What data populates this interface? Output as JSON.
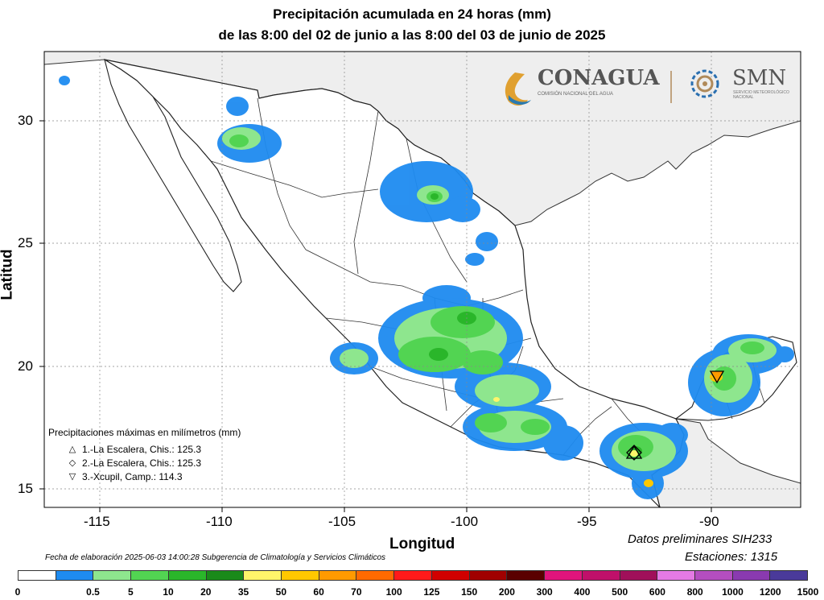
{
  "title": {
    "line1": "Precipitación acumulada en 24 horas (mm)",
    "line2": "de las 8:00 del 02 de junio a las 8:00 del 03 de junio de 2025"
  },
  "axes": {
    "xlabel": "Longitud",
    "ylabel": "Latitud",
    "xticks": [
      "-115",
      "-110",
      "-105",
      "-100",
      "-95",
      "-90"
    ],
    "yticks": [
      "30",
      "25",
      "20",
      "15"
    ],
    "x_range": [
      -117.2,
      -86.2
    ],
    "y_range": [
      14.3,
      32.9
    ]
  },
  "logos": {
    "conagua": "CONAGUA",
    "conagua_sub": "COMISIÓN NACIONAL DEL AGUA",
    "smn": "SMN",
    "smn_sub": "SERVICIO METEOROLÓGICO NACIONAL"
  },
  "max_precip": {
    "heading": "Precipitaciones máximas en milímetros (mm)",
    "items": [
      {
        "symbol": "△",
        "label": "1.-La Escalera, Chis.: 125.3"
      },
      {
        "symbol": "◇",
        "label": "2.-La Escalera, Chis.: 125.3"
      },
      {
        "symbol": "▽",
        "label": "3.-Xcupil, Camp.: 114.3"
      }
    ]
  },
  "meta": {
    "preliminary": "Datos preliminares SIH233",
    "stations": "Estaciones:  1315",
    "footnote": "Fecha de elaboración 2025-06-03 14:00:28 Subgerencia de Climatología y Servicios Climáticos"
  },
  "colorbar": {
    "labels": [
      "0",
      "0.5",
      "5",
      "10",
      "20",
      "35",
      "50",
      "60",
      "70",
      "100",
      "125",
      "150",
      "200",
      "300",
      "400",
      "500",
      "600",
      "800",
      "1000",
      "1200",
      "1500"
    ],
    "colors": [
      "#ffffff",
      "#1e8bf0",
      "#8ee68e",
      "#52d452",
      "#2ab62a",
      "#1a8a1a",
      "#fff56a",
      "#ffc800",
      "#ff9a00",
      "#ff6a00",
      "#ff1a1a",
      "#d10000",
      "#a00000",
      "#5a0000",
      "#e0147c",
      "#c0106a",
      "#a0105a",
      "#e47ae4",
      "#b44ec0",
      "#8a3ab0",
      "#4a3a9a"
    ]
  }
}
